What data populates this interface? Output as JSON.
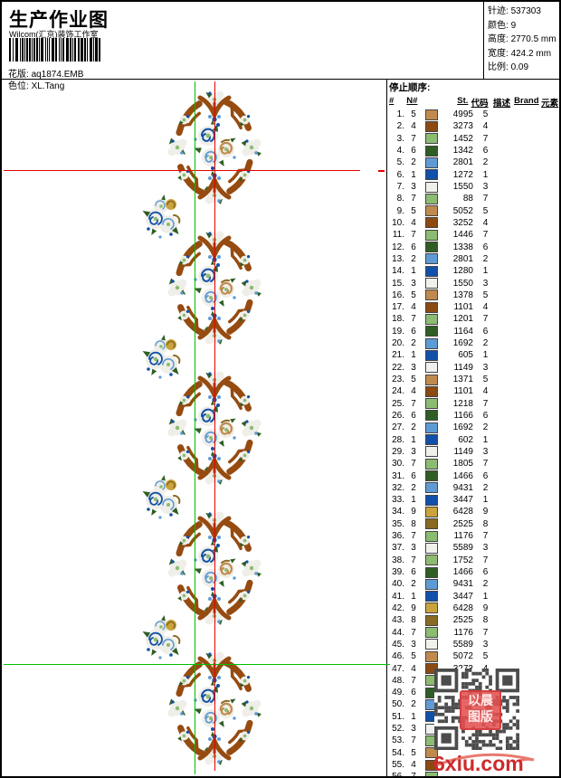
{
  "header": {
    "title": "生产作业图",
    "studio": "Wilcom(汇京)装饰工作室",
    "pattern_label": "花版:",
    "pattern_value": "aq1874.EMB",
    "colorway_label": "色位:",
    "colorway_value": "XL.Tang",
    "info": [
      {
        "label": "针迹:",
        "value": "537303"
      },
      {
        "label": "颜色:",
        "value": "9"
      },
      {
        "label": "高度:",
        "value": "2770.5 mm"
      },
      {
        "label": "宽度:",
        "value": "424.2 mm"
      },
      {
        "label": "比例:",
        "value": "0.09"
      }
    ]
  },
  "stop_sequence": {
    "title": "停止顺序:",
    "columns": [
      "#",
      "N#",
      "St.",
      "代码",
      "描述",
      "Brand",
      "元素"
    ],
    "palette": {
      "1": "#1050a8",
      "2": "#5e9bd4",
      "3": "#f0f0ec",
      "4": "#8b4a12",
      "5": "#c08a4e",
      "6": "#2f5e24",
      "7": "#8cbb72",
      "8": "#8a6a22",
      "9": "#c9a43c"
    },
    "rows": [
      {
        "no": "1.",
        "needle": "5",
        "st": "4995",
        "code": "5"
      },
      {
        "no": "2.",
        "needle": "4",
        "st": "3273",
        "code": "4"
      },
      {
        "no": "3.",
        "needle": "7",
        "st": "1452",
        "code": "7"
      },
      {
        "no": "4.",
        "needle": "6",
        "st": "1342",
        "code": "6"
      },
      {
        "no": "5.",
        "needle": "2",
        "st": "2801",
        "code": "2"
      },
      {
        "no": "6.",
        "needle": "1",
        "st": "1272",
        "code": "1"
      },
      {
        "no": "7.",
        "needle": "3",
        "st": "1550",
        "code": "3"
      },
      {
        "no": "8.",
        "needle": "7",
        "st": "88",
        "code": "7"
      },
      {
        "no": "9.",
        "needle": "5",
        "st": "5052",
        "code": "5"
      },
      {
        "no": "10.",
        "needle": "4",
        "st": "3252",
        "code": "4"
      },
      {
        "no": "11.",
        "needle": "7",
        "st": "1446",
        "code": "7"
      },
      {
        "no": "12.",
        "needle": "6",
        "st": "1338",
        "code": "6"
      },
      {
        "no": "13.",
        "needle": "2",
        "st": "2801",
        "code": "2"
      },
      {
        "no": "14.",
        "needle": "1",
        "st": "1280",
        "code": "1"
      },
      {
        "no": "15.",
        "needle": "3",
        "st": "1550",
        "code": "3"
      },
      {
        "no": "16.",
        "needle": "5",
        "st": "1378",
        "code": "5"
      },
      {
        "no": "17.",
        "needle": "4",
        "st": "1101",
        "code": "4"
      },
      {
        "no": "18.",
        "needle": "7",
        "st": "1201",
        "code": "7"
      },
      {
        "no": "19.",
        "needle": "6",
        "st": "1164",
        "code": "6"
      },
      {
        "no": "20.",
        "needle": "2",
        "st": "1692",
        "code": "2"
      },
      {
        "no": "21.",
        "needle": "1",
        "st": "605",
        "code": "1"
      },
      {
        "no": "22.",
        "needle": "3",
        "st": "1149",
        "code": "3"
      },
      {
        "no": "23.",
        "needle": "5",
        "st": "1371",
        "code": "5"
      },
      {
        "no": "24.",
        "needle": "4",
        "st": "1101",
        "code": "4"
      },
      {
        "no": "25.",
        "needle": "7",
        "st": "1218",
        "code": "7"
      },
      {
        "no": "26.",
        "needle": "6",
        "st": "1166",
        "code": "6"
      },
      {
        "no": "27.",
        "needle": "2",
        "st": "1692",
        "code": "2"
      },
      {
        "no": "28.",
        "needle": "1",
        "st": "602",
        "code": "1"
      },
      {
        "no": "29.",
        "needle": "3",
        "st": "1149",
        "code": "3"
      },
      {
        "no": "30.",
        "needle": "7",
        "st": "1805",
        "code": "7"
      },
      {
        "no": "31.",
        "needle": "6",
        "st": "1466",
        "code": "6"
      },
      {
        "no": "32.",
        "needle": "2",
        "st": "9431",
        "code": "2"
      },
      {
        "no": "33.",
        "needle": "1",
        "st": "3447",
        "code": "1"
      },
      {
        "no": "34.",
        "needle": "9",
        "st": "6428",
        "code": "9"
      },
      {
        "no": "35.",
        "needle": "8",
        "st": "2525",
        "code": "8"
      },
      {
        "no": "36.",
        "needle": "7",
        "st": "1176",
        "code": "7"
      },
      {
        "no": "37.",
        "needle": "3",
        "st": "5589",
        "code": "3"
      },
      {
        "no": "38.",
        "needle": "7",
        "st": "1752",
        "code": "7"
      },
      {
        "no": "39.",
        "needle": "6",
        "st": "1466",
        "code": "6"
      },
      {
        "no": "40.",
        "needle": "2",
        "st": "9431",
        "code": "2"
      },
      {
        "no": "41.",
        "needle": "1",
        "st": "3447",
        "code": "1"
      },
      {
        "no": "42.",
        "needle": "9",
        "st": "6428",
        "code": "9"
      },
      {
        "no": "43.",
        "needle": "8",
        "st": "2525",
        "code": "8"
      },
      {
        "no": "44.",
        "needle": "7",
        "st": "1176",
        "code": "7"
      },
      {
        "no": "45.",
        "needle": "3",
        "st": "5589",
        "code": "3"
      },
      {
        "no": "46.",
        "needle": "5",
        "st": "5072",
        "code": "5"
      },
      {
        "no": "47.",
        "needle": "4",
        "st": "3273",
        "code": "4"
      },
      {
        "no": "48.",
        "needle": "7",
        "st": "",
        "code": ""
      },
      {
        "no": "49.",
        "needle": "6",
        "st": "",
        "code": ""
      },
      {
        "no": "50.",
        "needle": "2",
        "st": "",
        "code": ""
      },
      {
        "no": "51.",
        "needle": "1",
        "st": "",
        "code": ""
      },
      {
        "no": "52.",
        "needle": "3",
        "st": "",
        "code": ""
      },
      {
        "no": "53.",
        "needle": "7",
        "st": "",
        "code": ""
      },
      {
        "no": "54.",
        "needle": "5",
        "st": "",
        "code": ""
      },
      {
        "no": "55.",
        "needle": "4",
        "st": "",
        "code": ""
      },
      {
        "no": "56.",
        "needle": "7",
        "st": "",
        "code": ""
      }
    ]
  },
  "design": {
    "guide_red": "#e80000",
    "guide_green": "#00c000",
    "thread_brown": "#964b10",
    "thread_white": "#efeee8",
    "thread_light_green": "#8cbb72",
    "thread_dark_green": "#2f5e24",
    "thread_light_blue": "#5e9bd4",
    "thread_dark_blue": "#1050a8",
    "thread_tan": "#c08a4e",
    "thread_gold": "#8a6a22"
  },
  "watermark": {
    "stamp_line1": "以晨",
    "stamp_line2": "图版",
    "logo": "6xiu.com"
  }
}
